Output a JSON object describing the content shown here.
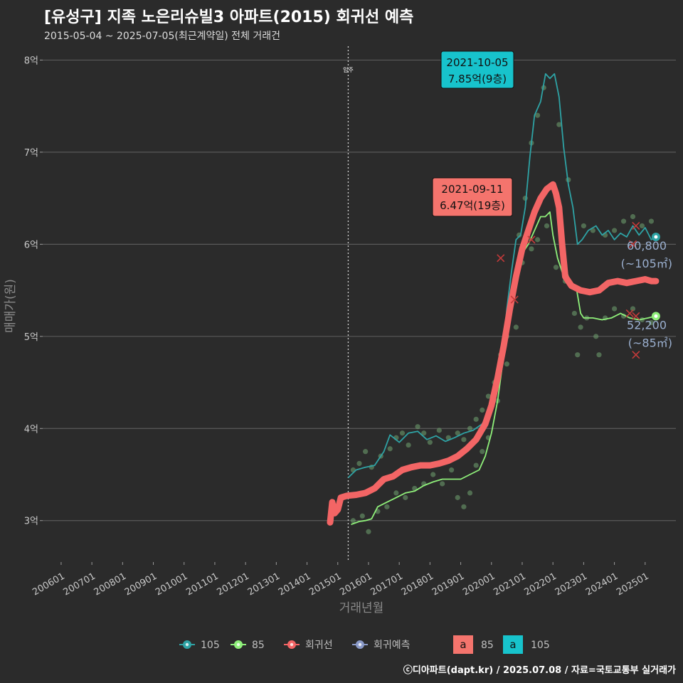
{
  "header": {
    "title": "[유성구] 지족 노은리슈빌3 아파트(2015) 회귀선 예측",
    "subtitle": "2015-05-04 ~ 2025-07-05(최근계약일) 전체 거래건",
    "credit": "ⓒ디아파트(dapt.kr) / 2025.07.08 / 자료=국토교통부 실거래가"
  },
  "chart_data": {
    "type": "line",
    "title": "[유성구] 지족 노은리슈빌3 아파트(2015) 회귀선 예측",
    "xlabel": "거래년월",
    "ylabel": "매매가(원)",
    "x_range": [
      2005.4,
      2026.0
    ],
    "ylim": [
      2.55,
      8.15
    ],
    "y_unit": "억",
    "y_ticks": [
      {
        "value": 3,
        "label": "3억"
      },
      {
        "value": 4,
        "label": "4억"
      },
      {
        "value": 5,
        "label": "5억"
      },
      {
        "value": 6,
        "label": "6억"
      },
      {
        "value": 7,
        "label": "7억"
      },
      {
        "value": 8,
        "label": "8억"
      }
    ],
    "x_ticks": [
      {
        "value": 2006,
        "label": "200601"
      },
      {
        "value": 2007,
        "label": "200701"
      },
      {
        "value": 2008,
        "label": "200801"
      },
      {
        "value": 2009,
        "label": "200901"
      },
      {
        "value": 2010,
        "label": "201001"
      },
      {
        "value": 2011,
        "label": "201101"
      },
      {
        "value": 2012,
        "label": "201201"
      },
      {
        "value": 2013,
        "label": "201301"
      },
      {
        "value": 2014,
        "label": "201401"
      },
      {
        "value": 2015,
        "label": "201501"
      },
      {
        "value": 2016,
        "label": "201601"
      },
      {
        "value": 2017,
        "label": "201701"
      },
      {
        "value": 2018,
        "label": "201801"
      },
      {
        "value": 2019,
        "label": "201901"
      },
      {
        "value": 2020,
        "label": "202001"
      },
      {
        "value": 2021,
        "label": "202101"
      },
      {
        "value": 2022,
        "label": "202201"
      },
      {
        "value": 2023,
        "label": "202301"
      },
      {
        "value": 2024,
        "label": "202401"
      },
      {
        "value": 2025,
        "label": "202501"
      }
    ],
    "vline": {
      "x": 2015.34,
      "label": "입주"
    },
    "series": [
      {
        "name": "105",
        "color": "#2ea3a5",
        "points": [
          [
            2015.35,
            3.47
          ],
          [
            2015.6,
            3.55
          ],
          [
            2015.9,
            3.58
          ],
          [
            2016.2,
            3.6
          ],
          [
            2016.5,
            3.75
          ],
          [
            2016.7,
            3.93
          ],
          [
            2017.0,
            3.85
          ],
          [
            2017.3,
            3.95
          ],
          [
            2017.6,
            3.97
          ],
          [
            2017.9,
            3.88
          ],
          [
            2018.2,
            3.92
          ],
          [
            2018.5,
            3.86
          ],
          [
            2018.8,
            3.9
          ],
          [
            2019.1,
            3.95
          ],
          [
            2019.4,
            3.98
          ],
          [
            2019.7,
            4.05
          ],
          [
            2019.95,
            4.2
          ],
          [
            2020.15,
            4.4
          ],
          [
            2020.35,
            4.75
          ],
          [
            2020.5,
            5.3
          ],
          [
            2020.65,
            5.7
          ],
          [
            2020.8,
            6.05
          ],
          [
            2020.95,
            6.1
          ],
          [
            2021.1,
            6.4
          ],
          [
            2021.25,
            6.95
          ],
          [
            2021.4,
            7.4
          ],
          [
            2021.6,
            7.55
          ],
          [
            2021.76,
            7.85
          ],
          [
            2021.9,
            7.8
          ],
          [
            2022.05,
            7.85
          ],
          [
            2022.2,
            7.6
          ],
          [
            2022.35,
            7.05
          ],
          [
            2022.5,
            6.65
          ],
          [
            2022.65,
            6.4
          ],
          [
            2022.8,
            6.0
          ],
          [
            2022.95,
            6.05
          ],
          [
            2023.15,
            6.15
          ],
          [
            2023.4,
            6.2
          ],
          [
            2023.6,
            6.1
          ],
          [
            2023.8,
            6.15
          ],
          [
            2024.0,
            6.05
          ],
          [
            2024.2,
            6.12
          ],
          [
            2024.4,
            6.08
          ],
          [
            2024.6,
            6.2
          ],
          [
            2024.8,
            6.1
          ],
          [
            2025.0,
            6.18
          ],
          [
            2025.2,
            6.05
          ],
          [
            2025.35,
            6.08
          ]
        ]
      },
      {
        "name": "85",
        "color": "#8ff07a",
        "points": [
          [
            2015.45,
            2.96
          ],
          [
            2015.7,
            2.99
          ],
          [
            2015.9,
            3.0
          ],
          [
            2016.1,
            3.02
          ],
          [
            2016.3,
            3.15
          ],
          [
            2016.6,
            3.2
          ],
          [
            2016.9,
            3.25
          ],
          [
            2017.2,
            3.3
          ],
          [
            2017.5,
            3.32
          ],
          [
            2017.8,
            3.38
          ],
          [
            2018.1,
            3.42
          ],
          [
            2018.4,
            3.45
          ],
          [
            2018.7,
            3.45
          ],
          [
            2019.0,
            3.45
          ],
          [
            2019.3,
            3.5
          ],
          [
            2019.6,
            3.55
          ],
          [
            2019.8,
            3.7
          ],
          [
            2020.0,
            3.95
          ],
          [
            2020.2,
            4.3
          ],
          [
            2020.4,
            4.8
          ],
          [
            2020.6,
            5.3
          ],
          [
            2020.8,
            5.6
          ],
          [
            2021.0,
            5.9
          ],
          [
            2021.2,
            6.0
          ],
          [
            2021.4,
            6.15
          ],
          [
            2021.6,
            6.3
          ],
          [
            2021.75,
            6.3
          ],
          [
            2021.9,
            6.35
          ],
          [
            2022.0,
            6.1
          ],
          [
            2022.15,
            5.85
          ],
          [
            2022.3,
            5.7
          ],
          [
            2022.45,
            5.7
          ],
          [
            2022.6,
            5.55
          ],
          [
            2022.75,
            5.55
          ],
          [
            2022.9,
            5.25
          ],
          [
            2023.0,
            5.2
          ],
          [
            2023.3,
            5.2
          ],
          [
            2023.6,
            5.18
          ],
          [
            2023.9,
            5.2
          ],
          [
            2024.2,
            5.25
          ],
          [
            2024.5,
            5.2
          ],
          [
            2024.8,
            5.18
          ],
          [
            2025.1,
            5.2
          ],
          [
            2025.35,
            5.22
          ]
        ]
      },
      {
        "name": "회귀선",
        "color": "#f36565",
        "points": [
          [
            2014.75,
            2.98
          ],
          [
            2014.82,
            3.2
          ],
          [
            2014.9,
            3.08
          ],
          [
            2015.0,
            3.12
          ],
          [
            2015.1,
            3.25
          ],
          [
            2015.3,
            3.27
          ],
          [
            2015.6,
            3.28
          ],
          [
            2015.9,
            3.3
          ],
          [
            2016.2,
            3.35
          ],
          [
            2016.5,
            3.45
          ],
          [
            2016.8,
            3.48
          ],
          [
            2017.1,
            3.55
          ],
          [
            2017.4,
            3.58
          ],
          [
            2017.7,
            3.6
          ],
          [
            2018.0,
            3.6
          ],
          [
            2018.3,
            3.62
          ],
          [
            2018.6,
            3.65
          ],
          [
            2018.9,
            3.7
          ],
          [
            2019.2,
            3.78
          ],
          [
            2019.5,
            3.88
          ],
          [
            2019.8,
            4.05
          ],
          [
            2020.0,
            4.25
          ],
          [
            2020.2,
            4.55
          ],
          [
            2020.4,
            4.9
          ],
          [
            2020.6,
            5.3
          ],
          [
            2020.8,
            5.65
          ],
          [
            2021.0,
            5.95
          ],
          [
            2021.2,
            6.15
          ],
          [
            2021.4,
            6.35
          ],
          [
            2021.6,
            6.5
          ],
          [
            2021.8,
            6.6
          ],
          [
            2022.0,
            6.65
          ],
          [
            2022.1,
            6.55
          ],
          [
            2022.2,
            6.4
          ],
          [
            2022.3,
            6.0
          ],
          [
            2022.4,
            5.65
          ],
          [
            2022.6,
            5.55
          ],
          [
            2022.9,
            5.5
          ],
          [
            2023.2,
            5.48
          ],
          [
            2023.5,
            5.5
          ],
          [
            2023.8,
            5.58
          ],
          [
            2024.1,
            5.6
          ],
          [
            2024.4,
            5.58
          ],
          [
            2024.7,
            5.6
          ],
          [
            2025.0,
            5.62
          ],
          [
            2025.2,
            5.6
          ],
          [
            2025.35,
            5.6
          ]
        ]
      }
    ],
    "scatter_dots": [
      [
        2015.5,
        3.55
      ],
      [
        2015.7,
        3.62
      ],
      [
        2015.9,
        3.75
      ],
      [
        2016.1,
        3.58
      ],
      [
        2016.4,
        3.7
      ],
      [
        2016.7,
        3.78
      ],
      [
        2016.9,
        3.9
      ],
      [
        2017.1,
        3.95
      ],
      [
        2017.3,
        3.82
      ],
      [
        2017.6,
        4.02
      ],
      [
        2017.8,
        3.95
      ],
      [
        2018.0,
        3.85
      ],
      [
        2018.3,
        3.98
      ],
      [
        2018.6,
        3.9
      ],
      [
        2018.9,
        3.95
      ],
      [
        2019.1,
        3.88
      ],
      [
        2019.3,
        4.0
      ],
      [
        2019.5,
        4.1
      ],
      [
        2019.7,
        4.2
      ],
      [
        2019.9,
        4.35
      ],
      [
        2020.1,
        4.5
      ],
      [
        2020.3,
        4.8
      ],
      [
        2020.5,
        5.0
      ],
      [
        2020.7,
        5.5
      ],
      [
        2020.9,
        6.1
      ],
      [
        2021.1,
        6.5
      ],
      [
        2021.3,
        7.1
      ],
      [
        2021.5,
        7.4
      ],
      [
        2021.7,
        7.7
      ],
      [
        2022.2,
        7.3
      ],
      [
        2022.5,
        6.7
      ],
      [
        2023.0,
        6.2
      ],
      [
        2023.3,
        6.15
      ],
      [
        2023.7,
        6.1
      ],
      [
        2024.0,
        6.15
      ],
      [
        2024.3,
        6.25
      ],
      [
        2024.6,
        6.3
      ],
      [
        2024.9,
        6.2
      ],
      [
        2025.2,
        6.25
      ],
      [
        2015.5,
        3.0
      ],
      [
        2015.8,
        3.05
      ],
      [
        2016.0,
        2.88
      ],
      [
        2016.3,
        3.1
      ],
      [
        2016.6,
        3.15
      ],
      [
        2016.9,
        3.3
      ],
      [
        2017.2,
        3.25
      ],
      [
        2017.5,
        3.35
      ],
      [
        2017.8,
        3.4
      ],
      [
        2018.1,
        3.5
      ],
      [
        2018.4,
        3.4
      ],
      [
        2018.7,
        3.55
      ],
      [
        2018.9,
        3.25
      ],
      [
        2019.1,
        3.15
      ],
      [
        2019.3,
        3.3
      ],
      [
        2019.5,
        3.6
      ],
      [
        2019.7,
        3.75
      ],
      [
        2019.9,
        3.9
      ],
      [
        2020.2,
        4.3
      ],
      [
        2020.5,
        4.7
      ],
      [
        2020.8,
        5.1
      ],
      [
        2021.0,
        5.8
      ],
      [
        2021.3,
        5.95
      ],
      [
        2021.5,
        6.05
      ],
      [
        2021.8,
        6.2
      ],
      [
        2022.1,
        5.75
      ],
      [
        2022.4,
        5.6
      ],
      [
        2022.7,
        5.25
      ],
      [
        2023.1,
        5.2
      ],
      [
        2023.4,
        5.0
      ],
      [
        2023.7,
        5.2
      ],
      [
        2024.0,
        5.3
      ],
      [
        2024.3,
        5.22
      ],
      [
        2024.6,
        5.3
      ],
      [
        2024.9,
        5.18
      ],
      [
        2025.2,
        5.15
      ],
      [
        2022.8,
        4.8
      ],
      [
        2023.5,
        4.8
      ],
      [
        2022.9,
        5.1
      ]
    ],
    "cross_marks": [
      [
        2024.7,
        6.2
      ],
      [
        2024.6,
        6.0
      ],
      [
        2024.5,
        5.25
      ],
      [
        2024.7,
        5.22
      ],
      [
        2024.7,
        4.8
      ],
      [
        2021.3,
        6.05
      ],
      [
        2020.75,
        5.4
      ],
      [
        2020.3,
        5.85
      ]
    ],
    "annotations": [
      {
        "date": "2021-10-05",
        "value": "7.85억(9층)",
        "series": "105",
        "x": 2021.76,
        "y": 7.85,
        "bg": "#17c3cc"
      },
      {
        "date": "2021-09-11",
        "value": "6.47억(19층)",
        "series": "85",
        "x": 2021.69,
        "y": 6.47,
        "bg": "#f4746d"
      }
    ],
    "end_labels": [
      {
        "series": "105",
        "price": "60,800",
        "area": "(~105㎡)",
        "x": 2025.35,
        "y": 6.08
      },
      {
        "series": "85",
        "price": "52,200",
        "area": "(~85㎡)",
        "x": 2025.35,
        "y": 5.22
      }
    ],
    "legend": {
      "position": "bottom",
      "line_items": [
        {
          "label": "105",
          "color": "#2ea3a5"
        },
        {
          "label": "85",
          "color": "#8ff07a"
        },
        {
          "label": "회귀선",
          "color": "#f36565"
        },
        {
          "label": "회귀예측",
          "color": "#8a9ac8"
        }
      ],
      "fill_items": [
        {
          "label": "85",
          "color": "#f4746d",
          "glyph": "a"
        },
        {
          "label": "105",
          "color": "#17c3cc",
          "glyph": "a"
        }
      ]
    }
  }
}
